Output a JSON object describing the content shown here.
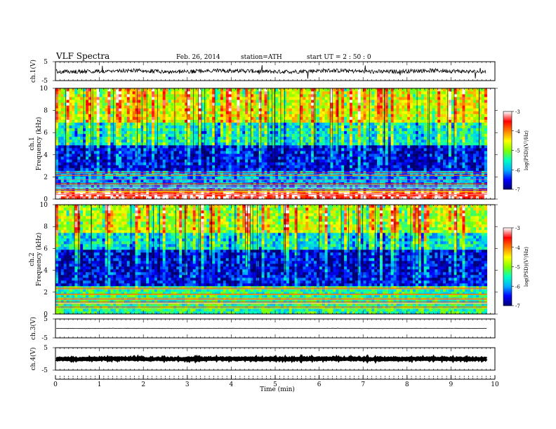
{
  "header": {
    "title": "VLF  Spectra",
    "date": "Feb. 26, 2014",
    "station": "station=ATH",
    "start": "start  UT  =   2  : 50 : 0"
  },
  "colors": {
    "spectrogram_scale": [
      "#000070",
      "#0000ff",
      "#00b0ff",
      "#00ffc0",
      "#80ff00",
      "#ffff00",
      "#ff8000",
      "#ff0000",
      "#ffffff"
    ],
    "trace": "#000000"
  },
  "chart_data": [
    {
      "type": "line",
      "panel": "ch1-waveform",
      "ylabel": "ch.1(V)",
      "yticks": [
        "5",
        "-5"
      ],
      "ylim": [
        -5,
        5
      ],
      "xlim": [
        0,
        10
      ],
      "data_extent_min": [
        0,
        9.8
      ],
      "series": [
        {
          "description": "broadband noise around baseline",
          "baseline": 0.0,
          "typical_range": [
            -1.2,
            1.2
          ],
          "spike_range": [
            -4.0,
            3.5
          ]
        }
      ]
    },
    {
      "type": "heatmap",
      "panel": "ch1-spectrogram",
      "ylabel": "Frequency  (kHz)",
      "channel_label": "ch.1",
      "yticks": [
        "0",
        "2",
        "4",
        "6",
        "8",
        "10"
      ],
      "ylim": [
        0,
        10
      ],
      "xlim": [
        0,
        10
      ],
      "colorbar": {
        "label": "log(PSD)(V²/Hz)",
        "ticks": [
          "-3",
          "-4",
          "-5",
          "-6",
          "-7"
        ],
        "range": [
          -7,
          -3
        ]
      },
      "profile": [
        {
          "f_min": 0.0,
          "f_max": 0.8,
          "logPSD": -3.3
        },
        {
          "f_min": 0.8,
          "f_max": 2.5,
          "logPSD": -6.0
        },
        {
          "f_min": 2.5,
          "f_max": 5.0,
          "logPSD": -6.6
        },
        {
          "f_min": 5.0,
          "f_max": 7.0,
          "logPSD": -5.6
        },
        {
          "f_min": 7.0,
          "f_max": 10.0,
          "logPSD": -4.6
        }
      ]
    },
    {
      "type": "heatmap",
      "panel": "ch2-spectrogram",
      "ylabel": "Frequency  (kHz)",
      "channel_label": "ch.2",
      "yticks": [
        "0",
        "2",
        "4",
        "6",
        "8",
        "10"
      ],
      "ylim": [
        0,
        10
      ],
      "xlim": [
        0,
        10
      ],
      "colorbar": {
        "label": "log(PSD)(V²/Hz)",
        "ticks": [
          "-3",
          "-4",
          "-5",
          "-6",
          "-7"
        ],
        "range": [
          -7,
          -3
        ]
      },
      "profile": [
        {
          "f_min": 0.0,
          "f_max": 2.6,
          "logPSD": -5.4
        },
        {
          "f_min": 2.6,
          "f_max": 5.8,
          "logPSD": -6.6
        },
        {
          "f_min": 5.8,
          "f_max": 7.5,
          "logPSD": -5.7
        },
        {
          "f_min": 7.5,
          "f_max": 10.0,
          "logPSD": -4.8
        }
      ]
    },
    {
      "type": "line",
      "panel": "ch3-waveform",
      "ylabel": "ch.3(V)",
      "yticks": [
        "5",
        "-5"
      ],
      "ylim": [
        -5,
        5
      ],
      "xlim": [
        0,
        10
      ],
      "series": [
        {
          "description": "flat trace",
          "baseline": 0.0,
          "typical_range": [
            -0.1,
            0.1
          ]
        }
      ]
    },
    {
      "type": "line",
      "panel": "ch4-waveform",
      "ylabel": "ch.4(V)",
      "yticks": [
        "5",
        "-5"
      ],
      "ylim": [
        -5,
        5
      ],
      "xlim": [
        0,
        10
      ],
      "series": [
        {
          "description": "thick flat trace",
          "baseline": 0.0,
          "typical_range": [
            -0.3,
            0.3
          ]
        }
      ]
    }
  ],
  "xaxis": {
    "label": "Time  (min)",
    "ticks": [
      "0",
      "1",
      "2",
      "3",
      "4",
      "5",
      "6",
      "7",
      "8",
      "9",
      "10"
    ],
    "range": [
      0,
      10
    ]
  }
}
